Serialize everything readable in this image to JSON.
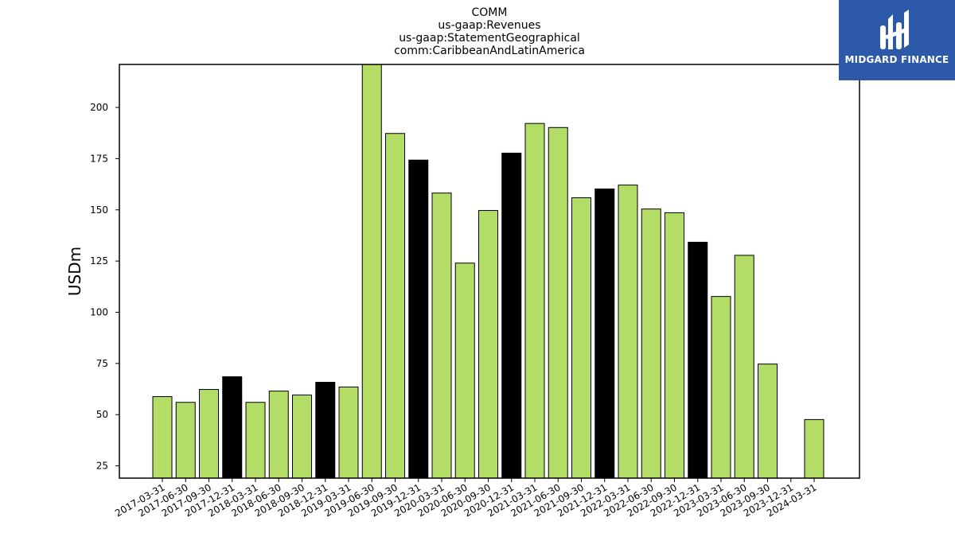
{
  "chart_data": {
    "type": "bar",
    "title_lines": [
      "COMM",
      "us-gaap:Revenues",
      "us-gaap:StatementGeographical",
      "comm:CaribbeanAndLatinAmerica"
    ],
    "xlabel": "",
    "ylabel": "USDm",
    "ylim": [
      19,
      221
    ],
    "yticks": [
      25,
      50,
      75,
      100,
      125,
      150,
      175,
      200
    ],
    "categories": [
      "2017-03-31",
      "2017-06-30",
      "2017-09-30",
      "2017-12-31",
      "2018-03-31",
      "2018-06-30",
      "2018-09-30",
      "2018-12-31",
      "2019-03-31",
      "2019-06-30",
      "2019-09-30",
      "2019-12-31",
      "2020-03-31",
      "2020-06-30",
      "2020-09-30",
      "2020-12-31",
      "2021-03-31",
      "2021-06-30",
      "2021-09-30",
      "2021-12-31",
      "2022-03-31",
      "2022-06-30",
      "2022-09-30",
      "2022-12-31",
      "2023-03-31",
      "2023-06-30",
      "2023-09-30",
      "2023-12-31",
      "2024-03-31"
    ],
    "values": [
      58.8,
      56.0,
      62.3,
      68.5,
      56.0,
      61.5,
      59.6,
      65.8,
      63.5,
      221,
      187.3,
      174.3,
      158.2,
      124.0,
      149.7,
      177.7,
      192.2,
      190.2,
      155.9,
      160.2,
      162.1,
      150.4,
      148.6,
      134.2,
      107.7,
      127.8,
      74.7,
      null,
      47.6
    ],
    "bar_colors": [
      "#b3dd66",
      "#b3dd66",
      "#b3dd66",
      "#000000",
      "#b3dd66",
      "#b3dd66",
      "#b3dd66",
      "#000000",
      "#b3dd66",
      "#b3dd66",
      "#b3dd66",
      "#000000",
      "#b3dd66",
      "#b3dd66",
      "#b3dd66",
      "#000000",
      "#b3dd66",
      "#b3dd66",
      "#b3dd66",
      "#000000",
      "#b3dd66",
      "#b3dd66",
      "#b3dd66",
      "#000000",
      "#b3dd66",
      "#b3dd66",
      "#b3dd66",
      "#000000",
      "#b3dd66"
    ],
    "grid": false,
    "legend": "none"
  },
  "logo": {
    "text": "MIDGARD FINANCE",
    "background": "#2d5aa8"
  }
}
